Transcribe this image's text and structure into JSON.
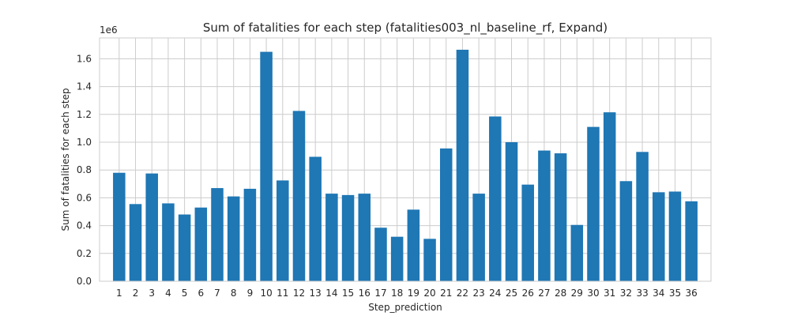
{
  "chart_data": {
    "type": "bar",
    "title": "Sum of fatalities for each step (fatalities003_nl_baseline_rf, Expand)",
    "xlabel": "Step_prediction",
    "ylabel": "Sum of fatalities for each step",
    "offset_text": "1e6",
    "scale": 1000000,
    "categories": [
      "1",
      "2",
      "3",
      "4",
      "5",
      "6",
      "7",
      "8",
      "9",
      "10",
      "11",
      "12",
      "13",
      "14",
      "15",
      "16",
      "17",
      "18",
      "19",
      "20",
      "21",
      "22",
      "23",
      "24",
      "25",
      "26",
      "27",
      "28",
      "29",
      "30",
      "31",
      "32",
      "33",
      "34",
      "35",
      "36"
    ],
    "values": [
      780000,
      555000,
      775000,
      560000,
      480000,
      530000,
      670000,
      610000,
      665000,
      1650000,
      725000,
      1225000,
      895000,
      630000,
      620000,
      630000,
      385000,
      320000,
      515000,
      305000,
      955000,
      1665000,
      630000,
      1185000,
      1000000,
      695000,
      940000,
      920000,
      405000,
      1110000,
      1215000,
      720000,
      930000,
      640000,
      645000,
      575000
    ],
    "yticks": [
      0,
      200000,
      400000,
      600000,
      800000,
      1000000,
      1200000,
      1400000,
      1600000
    ],
    "ytick_labels": [
      "0.0",
      "0.2",
      "0.4",
      "0.6",
      "0.8",
      "1.0",
      "1.2",
      "1.4",
      "1.6"
    ],
    "ylim": [
      0,
      1750000
    ],
    "bar_color": "#1f77b4",
    "grid": true
  }
}
